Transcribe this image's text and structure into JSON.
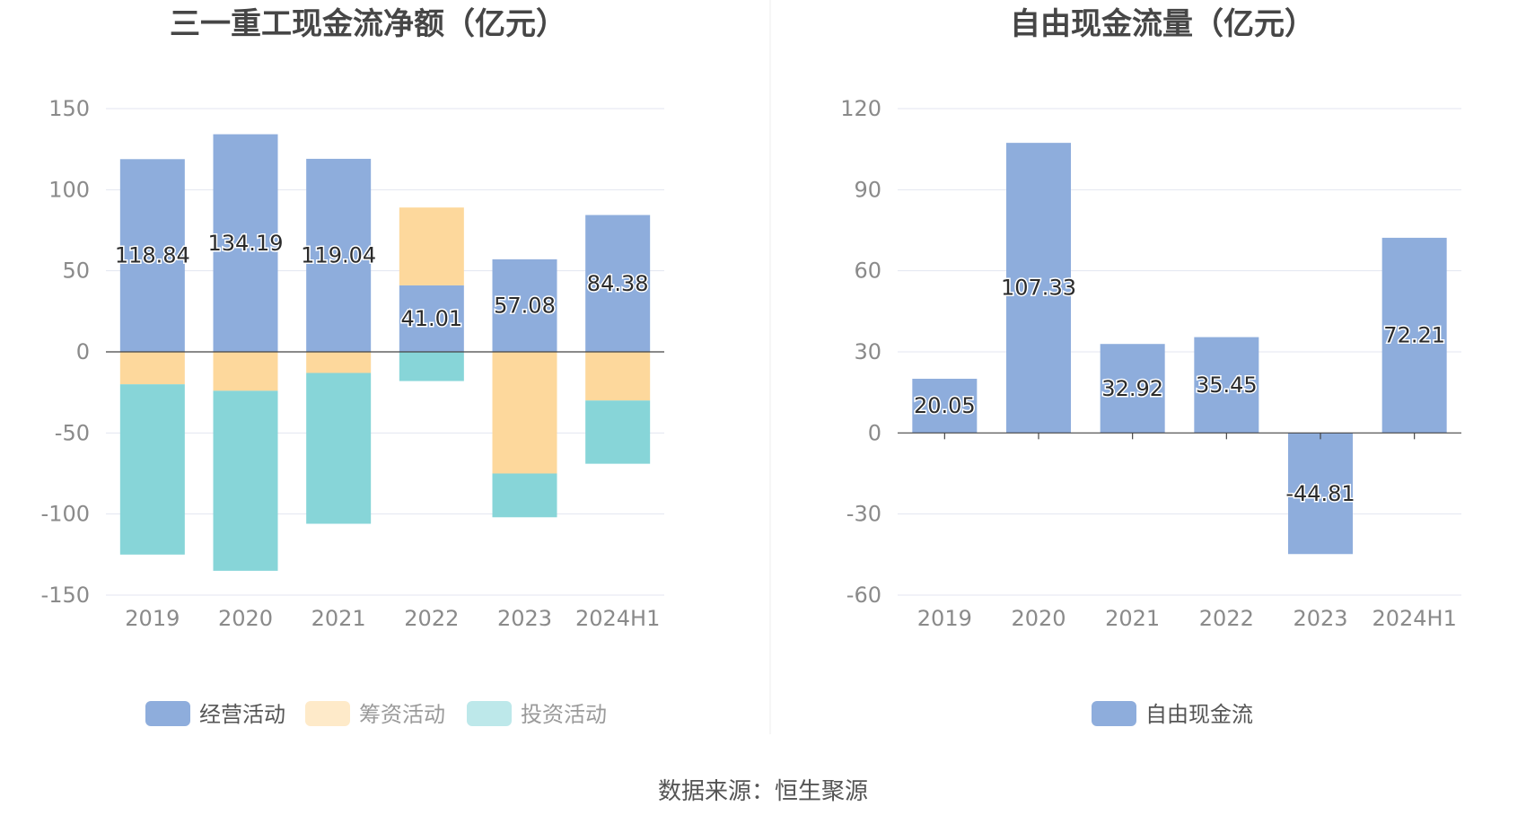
{
  "source": "数据来源：恒生聚源",
  "colors": {
    "operating": "#8eaddc",
    "financing": "#fdd89c",
    "investing": "#87d5d8",
    "free_cash_flow": "#8eaddc",
    "grid": "#e3e6f0",
    "axis": "#444444",
    "divider": "#eeeeee"
  },
  "chart_data": [
    {
      "type": "bar",
      "stacked": true,
      "title": "三一重工现金流净额（亿元）",
      "categories": [
        "2019",
        "2020",
        "2021",
        "2022",
        "2023",
        "2024H1"
      ],
      "ylim": [
        -150,
        150
      ],
      "yticks": [
        150,
        100,
        50,
        0,
        -50,
        -100,
        -150
      ],
      "grid": true,
      "legend_position": "bottom",
      "series": [
        {
          "name": "经营活动",
          "color_key": "operating",
          "values": [
            118.84,
            134.19,
            119.04,
            41.01,
            57.08,
            84.38
          ],
          "show_labels": true
        },
        {
          "name": "筹资活动",
          "color_key": "financing",
          "values": [
            -20,
            -24,
            -13,
            48,
            -75,
            -30
          ],
          "show_labels": false
        },
        {
          "name": "投资活动",
          "color_key": "investing",
          "values": [
            -105,
            -111,
            -93,
            -18,
            -27,
            -39
          ],
          "show_labels": false
        }
      ],
      "data_labels": [
        "118.84",
        "134.19",
        "119.04",
        "41.01",
        "57.08",
        "84.38"
      ],
      "legend_muted": [
        false,
        true,
        true
      ]
    },
    {
      "type": "bar",
      "stacked": false,
      "title": "自由现金流量（亿元）",
      "categories": [
        "2019",
        "2020",
        "2021",
        "2022",
        "2023",
        "2024H1"
      ],
      "ylim": [
        -60,
        120
      ],
      "yticks": [
        120,
        90,
        60,
        30,
        0,
        -30,
        -60
      ],
      "grid": true,
      "legend_position": "bottom",
      "series": [
        {
          "name": "自由现金流",
          "color_key": "free_cash_flow",
          "values": [
            20.05,
            107.33,
            32.92,
            35.45,
            -44.81,
            72.21
          ],
          "show_labels": true
        }
      ],
      "data_labels": [
        "20.05",
        "107.33",
        "32.92",
        "35.45",
        "-44.81",
        "72.21"
      ],
      "legend_muted": [
        false
      ]
    }
  ]
}
